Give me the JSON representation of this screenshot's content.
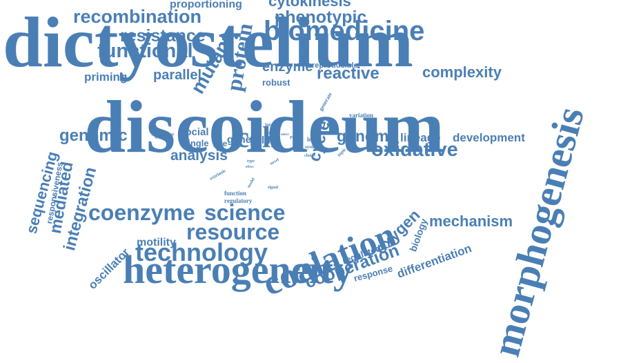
{
  "color": "#4a7fb5",
  "words": [
    {
      "id": "dictyostelium",
      "text": "dictyostelium"
    },
    {
      "id": "discoideum",
      "text": "discoideum"
    },
    {
      "id": "morphogenesis",
      "text": "morphogenesis"
    },
    {
      "id": "heterogeneity",
      "text": "heterogeneity"
    },
    {
      "id": "biomedicine",
      "text": "biomedicine"
    },
    {
      "id": "coalation",
      "text": "coalation"
    },
    {
      "id": "coenzyme",
      "text": "coenzyme"
    },
    {
      "id": "science",
      "text": "science"
    },
    {
      "id": "resource",
      "text": "resource"
    },
    {
      "id": "technology",
      "text": "technology"
    },
    {
      "id": "protein",
      "text": "protein"
    },
    {
      "id": "mutant",
      "text": "mutant"
    },
    {
      "id": "recombination",
      "text": "recombination"
    },
    {
      "id": "resistance",
      "text": "resistance"
    },
    {
      "id": "functional",
      "text": "functional"
    },
    {
      "id": "phenotypic",
      "text": "phenotypic"
    },
    {
      "id": "cytokinesis",
      "text": "cytokinesis"
    },
    {
      "id": "proportioning",
      "text": "proportioning"
    },
    {
      "id": "oxidative",
      "text": "oxidative"
    },
    {
      "id": "cell",
      "text": "cell"
    },
    {
      "id": "cycle",
      "text": "cycle"
    },
    {
      "id": "genomic",
      "text": "genomic"
    },
    {
      "id": "genome",
      "text": "genome"
    },
    {
      "id": "analysis",
      "text": "analysis"
    },
    {
      "id": "cooperation",
      "text": "cooperation"
    },
    {
      "id": "mechanism",
      "text": "mechanism"
    },
    {
      "id": "complexity",
      "text": "complexity"
    },
    {
      "id": "lineage",
      "text": "lineage"
    },
    {
      "id": "development",
      "text": "development"
    },
    {
      "id": "reactive",
      "text": "reactive"
    },
    {
      "id": "enzyme",
      "text": "enzyme"
    },
    {
      "id": "robust",
      "text": "robust"
    },
    {
      "id": "reproducible",
      "text": "reproducible"
    },
    {
      "id": "priming",
      "text": "priming"
    },
    {
      "id": "parallel",
      "text": "parallel"
    },
    {
      "id": "sequencing",
      "text": "sequencing"
    },
    {
      "id": "responsiveness",
      "text": "responsiveness"
    },
    {
      "id": "mediated",
      "text": "mediated"
    },
    {
      "id": "integration",
      "text": "integration"
    },
    {
      "id": "oscillator",
      "text": "oscillator"
    },
    {
      "id": "motility",
      "text": "motility"
    },
    {
      "id": "oxygen",
      "text": "oxygen"
    },
    {
      "id": "regulated",
      "text": "regulated"
    },
    {
      "id": "biology",
      "text": "biology"
    },
    {
      "id": "differentiation",
      "text": "differentiation"
    },
    {
      "id": "response",
      "text": "response"
    },
    {
      "id": "social",
      "text": "social"
    },
    {
      "id": "single",
      "text": "single"
    },
    {
      "id": "fate",
      "text": "fate"
    },
    {
      "id": "gene",
      "text": "gene"
    },
    {
      "id": "life",
      "text": "life"
    },
    {
      "id": "str",
      "text": "str"
    },
    {
      "id": "function",
      "text": "function"
    },
    {
      "id": "regulatory",
      "text": "regulatory"
    },
    {
      "id": "variation",
      "text": "variation"
    },
    {
      "id": "generate",
      "text": "generate"
    },
    {
      "id": "level",
      "text": "level"
    },
    {
      "id": "system",
      "text": "system"
    },
    {
      "id": "challenge",
      "text": "challenge"
    },
    {
      "id": "intrinsic",
      "text": "intrinsic"
    },
    {
      "id": "study",
      "text": "study"
    },
    {
      "id": "select",
      "text": "select"
    },
    {
      "id": "provide",
      "text": "provide"
    },
    {
      "id": "topic",
      "text": "topic"
    },
    {
      "id": "extrinsic",
      "text": "extrinsic"
    },
    {
      "id": "type",
      "text": "type"
    },
    {
      "id": "novel",
      "text": "novel"
    },
    {
      "id": "effect",
      "text": "effect"
    },
    {
      "id": "model",
      "text": "model"
    },
    {
      "id": "signal",
      "text": "signal"
    },
    {
      "id": "choice",
      "text": "choice"
    }
  ]
}
